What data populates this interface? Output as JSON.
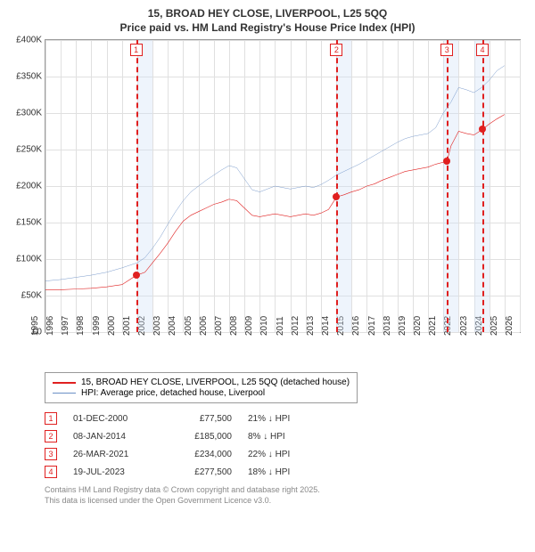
{
  "title_line1": "15, BROAD HEY CLOSE, LIVERPOOL, L25 5QQ",
  "title_line2": "Price paid vs. HM Land Registry's House Price Index (HPI)",
  "chart": {
    "type": "line",
    "background_color": "#ffffff",
    "grid_color": "#e0e0e0",
    "ylabel_prefix": "£",
    "ylim": [
      0,
      400000
    ],
    "ytick_step": 50000,
    "yticks": [
      "£0",
      "£50K",
      "£100K",
      "£150K",
      "£200K",
      "£250K",
      "£300K",
      "£350K",
      "£400K"
    ],
    "xlim": [
      1995,
      2026
    ],
    "xticks": [
      1995,
      1996,
      1997,
      1998,
      1999,
      2000,
      2001,
      2002,
      2003,
      2004,
      2005,
      2006,
      2007,
      2008,
      2009,
      2010,
      2011,
      2012,
      2013,
      2014,
      2015,
      2016,
      2017,
      2018,
      2019,
      2020,
      2021,
      2022,
      2023,
      2024,
      2025,
      2026
    ],
    "shaded_bands_x": [
      [
        2001,
        2002
      ],
      [
        2014,
        2015
      ],
      [
        2021,
        2022
      ],
      [
        2023,
        2024
      ]
    ],
    "shade_color": "#cfe0f5",
    "vdash_x": [
      2000.92,
      2014.02,
      2021.24,
      2023.55
    ],
    "vdash_color": "#e02020",
    "markers": [
      {
        "n": "1",
        "x": 2000.92
      },
      {
        "n": "2",
        "x": 2014.02
      },
      {
        "n": "3",
        "x": 2021.24
      },
      {
        "n": "4",
        "x": 2023.55
      }
    ],
    "series": [
      {
        "name": "price_paid",
        "color": "#e02020",
        "width": 2,
        "points": [
          [
            1995,
            58000
          ],
          [
            1996,
            58000
          ],
          [
            1997,
            59000
          ],
          [
            1998,
            60000
          ],
          [
            1999,
            62000
          ],
          [
            2000,
            65000
          ],
          [
            2000.92,
            77500
          ],
          [
            2001.5,
            82000
          ],
          [
            2002,
            95000
          ],
          [
            2002.5,
            108000
          ],
          [
            2003,
            122000
          ],
          [
            2003.5,
            138000
          ],
          [
            2004,
            152000
          ],
          [
            2004.5,
            160000
          ],
          [
            2005,
            165000
          ],
          [
            2005.5,
            170000
          ],
          [
            2006,
            175000
          ],
          [
            2006.5,
            178000
          ],
          [
            2007,
            182000
          ],
          [
            2007.5,
            180000
          ],
          [
            2008,
            170000
          ],
          [
            2008.5,
            160000
          ],
          [
            2009,
            158000
          ],
          [
            2009.5,
            160000
          ],
          [
            2010,
            162000
          ],
          [
            2010.5,
            160000
          ],
          [
            2011,
            158000
          ],
          [
            2011.5,
            160000
          ],
          [
            2012,
            162000
          ],
          [
            2012.5,
            160000
          ],
          [
            2013,
            163000
          ],
          [
            2013.5,
            168000
          ],
          [
            2014.02,
            185000
          ],
          [
            2014.5,
            188000
          ],
          [
            2015,
            192000
          ],
          [
            2015.5,
            195000
          ],
          [
            2016,
            200000
          ],
          [
            2016.5,
            203000
          ],
          [
            2017,
            208000
          ],
          [
            2017.5,
            212000
          ],
          [
            2018,
            216000
          ],
          [
            2018.5,
            220000
          ],
          [
            2019,
            222000
          ],
          [
            2019.5,
            224000
          ],
          [
            2020,
            226000
          ],
          [
            2020.5,
            230000
          ],
          [
            2021.24,
            234000
          ],
          [
            2021.5,
            255000
          ],
          [
            2022,
            275000
          ],
          [
            2022.5,
            272000
          ],
          [
            2023,
            270000
          ],
          [
            2023.55,
            277500
          ],
          [
            2024,
            285000
          ],
          [
            2024.5,
            292000
          ],
          [
            2025,
            298000
          ]
        ],
        "sale_dots": [
          {
            "x": 2000.92,
            "y": 77500
          },
          {
            "x": 2014.02,
            "y": 185000
          },
          {
            "x": 2021.24,
            "y": 234000
          },
          {
            "x": 2023.55,
            "y": 277500
          }
        ]
      },
      {
        "name": "hpi",
        "color": "#6a8fc5",
        "width": 1.5,
        "points": [
          [
            1995,
            70000
          ],
          [
            1996,
            72000
          ],
          [
            1997,
            75000
          ],
          [
            1998,
            78000
          ],
          [
            1999,
            82000
          ],
          [
            2000,
            88000
          ],
          [
            2001,
            95000
          ],
          [
            2001.5,
            102000
          ],
          [
            2002,
            115000
          ],
          [
            2002.5,
            130000
          ],
          [
            2003,
            148000
          ],
          [
            2003.5,
            165000
          ],
          [
            2004,
            180000
          ],
          [
            2004.5,
            192000
          ],
          [
            2005,
            200000
          ],
          [
            2005.5,
            208000
          ],
          [
            2006,
            215000
          ],
          [
            2006.5,
            222000
          ],
          [
            2007,
            228000
          ],
          [
            2007.5,
            225000
          ],
          [
            2008,
            210000
          ],
          [
            2008.5,
            195000
          ],
          [
            2009,
            192000
          ],
          [
            2009.5,
            196000
          ],
          [
            2010,
            200000
          ],
          [
            2010.5,
            198000
          ],
          [
            2011,
            196000
          ],
          [
            2011.5,
            198000
          ],
          [
            2012,
            200000
          ],
          [
            2012.5,
            198000
          ],
          [
            2013,
            202000
          ],
          [
            2013.5,
            208000
          ],
          [
            2014,
            215000
          ],
          [
            2014.5,
            220000
          ],
          [
            2015,
            225000
          ],
          [
            2015.5,
            230000
          ],
          [
            2016,
            236000
          ],
          [
            2016.5,
            242000
          ],
          [
            2017,
            248000
          ],
          [
            2017.5,
            254000
          ],
          [
            2018,
            260000
          ],
          [
            2018.5,
            265000
          ],
          [
            2019,
            268000
          ],
          [
            2019.5,
            270000
          ],
          [
            2020,
            272000
          ],
          [
            2020.5,
            280000
          ],
          [
            2021,
            300000
          ],
          [
            2021.5,
            315000
          ],
          [
            2022,
            335000
          ],
          [
            2022.5,
            332000
          ],
          [
            2023,
            328000
          ],
          [
            2023.5,
            335000
          ],
          [
            2024,
            345000
          ],
          [
            2024.5,
            358000
          ],
          [
            2025,
            365000
          ]
        ]
      }
    ]
  },
  "legend": {
    "items": [
      {
        "label": "15, BROAD HEY CLOSE, LIVERPOOL, L25 5QQ (detached house)",
        "color": "#e02020",
        "width": 2
      },
      {
        "label": "HPI: Average price, detached house, Liverpool",
        "color": "#6a8fc5",
        "width": 1.5
      }
    ]
  },
  "sales": [
    {
      "n": "1",
      "date": "01-DEC-2000",
      "price": "£77,500",
      "diff": "21% ↓ HPI"
    },
    {
      "n": "2",
      "date": "08-JAN-2014",
      "price": "£185,000",
      "diff": "8% ↓ HPI"
    },
    {
      "n": "3",
      "date": "26-MAR-2021",
      "price": "£234,000",
      "diff": "22% ↓ HPI"
    },
    {
      "n": "4",
      "date": "19-JUL-2023",
      "price": "£277,500",
      "diff": "18% ↓ HPI"
    }
  ],
  "attribution": {
    "line1": "Contains HM Land Registry data © Crown copyright and database right 2025.",
    "line2": "This data is licensed under the Open Government Licence v3.0."
  }
}
